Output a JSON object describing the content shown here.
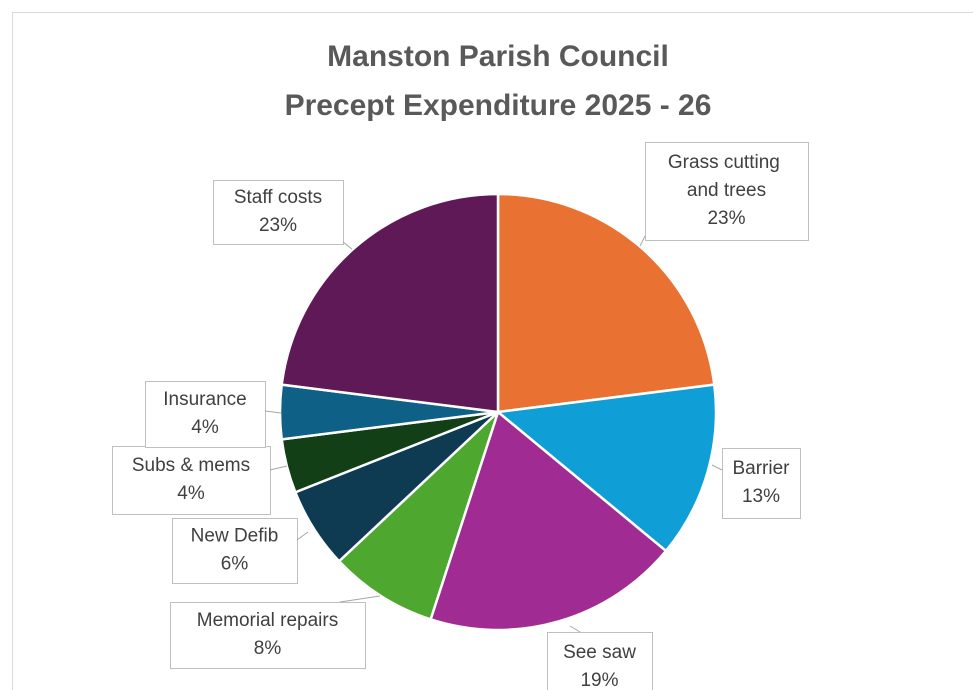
{
  "chart_data": {
    "type": "pie",
    "title": [
      "Manston Parish Council",
      "Precept Expenditure 2025 - 26"
    ],
    "categories": [
      "Grass cutting and trees",
      "Barrier",
      "See saw",
      "Memorial repairs",
      "New Defib",
      "Subs & mems",
      "Insurance",
      "Staff costs"
    ],
    "values": [
      23,
      13,
      19,
      8,
      6,
      4,
      4,
      23
    ],
    "value_labels": [
      "23%",
      "13%",
      "19%",
      "8%",
      "6%",
      "4%",
      "4%",
      "23%"
    ],
    "colors": [
      "#e97132",
      "#0f9ed5",
      "#a02b93",
      "#4ea72e",
      "#0e3a52",
      "#123f16",
      "#0f6087",
      "#5f1956"
    ]
  }
}
